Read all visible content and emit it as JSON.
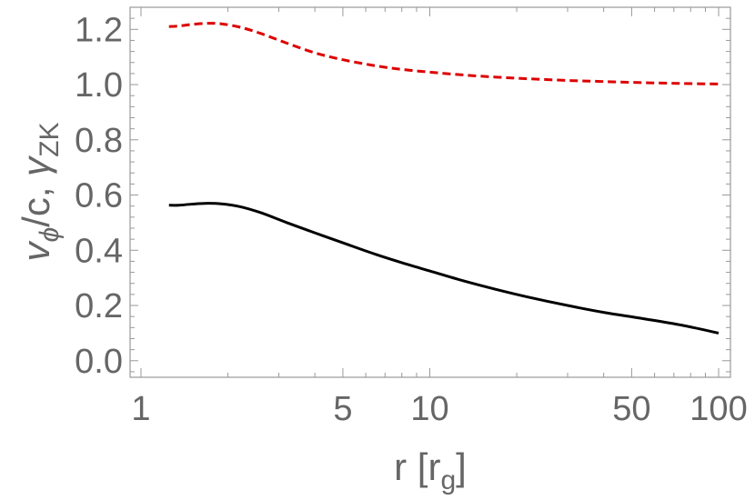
{
  "chart_data": {
    "type": "line",
    "title": "",
    "xlabel": {
      "main": "r [r",
      "sub": "g",
      "close": "]"
    },
    "ylabel": {
      "v": "v",
      "phi": "ϕ",
      "mid": "/c, ",
      "gamma": "γ",
      "zk": "ZK"
    },
    "x_scale": "log",
    "xlim": [
      1,
      100
    ],
    "ylim": [
      -0.06,
      1.28
    ],
    "x_ticks": [
      1,
      5,
      10,
      50,
      100
    ],
    "x_tick_labels": [
      "1",
      "5",
      "10",
      "50",
      "100"
    ],
    "y_ticks": [
      0.0,
      0.2,
      0.4,
      0.6,
      0.8,
      1.0,
      1.2
    ],
    "y_tick_labels": [
      "0.0",
      "0.2",
      "0.4",
      "0.6",
      "0.8",
      "1.0",
      "1.2"
    ],
    "grid": false,
    "legend": "none",
    "series": [
      {
        "color": "#dd0000",
        "dash": true,
        "x": [
          1.25,
          1.35,
          1.5,
          1.7,
          1.9,
          2.2,
          2.6,
          3.2,
          4,
          5,
          6.5,
          8,
          10,
          13,
          17,
          22,
          30,
          40,
          55,
          75,
          100
        ],
        "values": [
          1.21,
          1.212,
          1.218,
          1.222,
          1.22,
          1.208,
          1.185,
          1.15,
          1.115,
          1.09,
          1.068,
          1.055,
          1.045,
          1.035,
          1.027,
          1.021,
          1.015,
          1.011,
          1.007,
          1.004,
          1.002
        ]
      },
      {
        "color": "#000000",
        "dash": false,
        "x": [
          1.25,
          1.35,
          1.5,
          1.7,
          1.9,
          2.2,
          2.6,
          3.2,
          4,
          5,
          6.5,
          8,
          10,
          13,
          17,
          22,
          30,
          40,
          55,
          75,
          100
        ],
        "values": [
          0.563,
          0.563,
          0.567,
          0.57,
          0.568,
          0.558,
          0.536,
          0.5,
          0.463,
          0.427,
          0.385,
          0.355,
          0.325,
          0.29,
          0.258,
          0.23,
          0.2,
          0.175,
          0.152,
          0.128,
          0.1
        ]
      }
    ]
  }
}
